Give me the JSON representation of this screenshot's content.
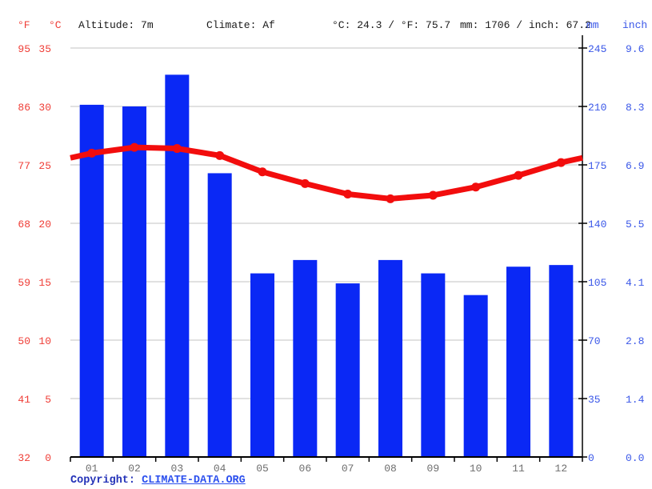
{
  "header": {
    "f_label": "°F",
    "c_label": "°C",
    "altitude": "Altitude: 7m",
    "climate": "Climate: Af",
    "temp_summary": "°C: 24.3 / °F: 75.7",
    "precip_summary": "mm: 1706 / inch: 67.2",
    "mm_label": "mm",
    "inch_label": "inch"
  },
  "footer": {
    "copyright_label": "Copyright:",
    "link_text": "CLIMATE-DATA.ORG"
  },
  "colors": {
    "bar_blue": "#0a28f5",
    "line_red": "#f20d0d",
    "red_axis_text": "#ef3d36",
    "blue_axis_text": "#3a57e8",
    "month_text": "#6e6e6e",
    "gridline": "#cfcfcf",
    "axis_black": "#000000"
  },
  "chart_data": {
    "type": "bar+line combo (climograph)",
    "title": "",
    "categories": [
      "01",
      "02",
      "03",
      "04",
      "05",
      "06",
      "07",
      "08",
      "09",
      "10",
      "11",
      "12"
    ],
    "series": [
      {
        "name": "Precipitation",
        "type": "bar",
        "unit": "mm",
        "values": [
          211,
          210,
          229,
          170,
          110,
          118,
          104,
          118,
          110,
          97,
          114,
          115
        ]
      },
      {
        "name": "Temperature",
        "type": "line",
        "unit": "°C",
        "values": [
          26.0,
          26.5,
          26.4,
          25.8,
          24.4,
          23.4,
          22.5,
          22.1,
          22.4,
          23.1,
          24.1,
          25.2
        ]
      }
    ],
    "annual_precip_mm": 1706,
    "annual_precip_inch": 67.2,
    "mean_temp_c": 24.3,
    "mean_temp_f": 75.7,
    "ylim_mm": [
      0,
      245
    ],
    "ylim_c": [
      0,
      35
    ],
    "grid": "horizontal gridlines on",
    "legend": "none",
    "axes": {
      "left_f": {
        "label": "°F",
        "ticks": [
          "95",
          "86",
          "77",
          "68",
          "59",
          "50",
          "41",
          "32"
        ]
      },
      "left_c": {
        "label": "°C",
        "ticks": [
          "35",
          "30",
          "25",
          "20",
          "15",
          "10",
          "5",
          "0"
        ]
      },
      "right_mm": {
        "label": "mm",
        "ticks": [
          "245",
          "210",
          "175",
          "140",
          "105",
          "70",
          "35",
          "0"
        ]
      },
      "right_inch": {
        "label": "inch",
        "ticks": [
          "9.6",
          "8.3",
          "6.9",
          "5.5",
          "4.1",
          "2.8",
          "1.4",
          "0.0"
        ]
      }
    }
  }
}
